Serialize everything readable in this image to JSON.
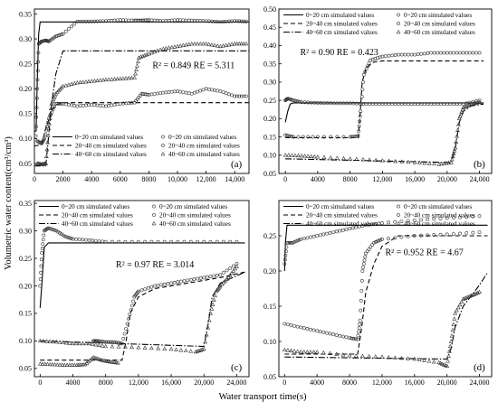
{
  "figure": {
    "ylabel": "Volumetric water content(cm³/cm³)",
    "xlabel": "Water transport time(s)"
  },
  "chart_data": [
    {
      "panel": "(a)",
      "type": "line",
      "xlim": [
        0,
        15000
      ],
      "ylim": [
        0.03,
        0.36
      ],
      "xticks": [
        0,
        2000,
        4000,
        6000,
        8000,
        10000,
        12000,
        14000
      ],
      "xtick_labels": [
        "0",
        "2000",
        "4000",
        "6000",
        "8000",
        "10,000",
        "12,000",
        "14,000"
      ],
      "yticks": [
        0.05,
        0.1,
        0.15,
        0.2,
        0.25,
        0.3,
        0.35
      ],
      "ytick_labels": [
        "0.05",
        "0.10",
        "0.15",
        "0.20",
        "0.25",
        "0.30",
        "0.35"
      ],
      "annotation": "R² = 0.849 RE = 5.311",
      "legend": [
        "0~20 cm simulated values",
        "20~40 cm simulated values",
        "40~60 cm simulated values",
        "0~20 cm simulated values",
        "20~40 cm simulated values",
        "40~60 cm simulated values"
      ],
      "legend_position": "lower-right",
      "series": [
        {
          "name": "0~20 cm simulated values",
          "kind": "sim",
          "style": "solid",
          "x": [
            0,
            120,
            200,
            300,
            400,
            500,
            15000
          ],
          "y": [
            0.115,
            0.115,
            0.22,
            0.31,
            0.334,
            0.334,
            0.334
          ]
        },
        {
          "name": "20~40 cm simulated values",
          "kind": "sim",
          "style": "dash",
          "x": [
            0,
            500,
            800,
            1200,
            1500,
            2000,
            15000
          ],
          "y": [
            0.085,
            0.088,
            0.12,
            0.155,
            0.168,
            0.172,
            0.172
          ]
        },
        {
          "name": "40~60 cm simulated values",
          "kind": "sim",
          "style": "dashdot",
          "x": [
            0,
            800,
            1200,
            1500,
            2000,
            15000
          ],
          "y": [
            0.045,
            0.045,
            0.17,
            0.23,
            0.276,
            0.276
          ]
        },
        {
          "name": "0~20 cm simulated values",
          "kind": "obs",
          "marker": "circle",
          "x": [
            100,
            200,
            300,
            500,
            800,
            1000,
            1500,
            2000,
            3000,
            4000,
            5000,
            6000,
            7000,
            7500,
            8000,
            9000,
            10000,
            11000,
            12000,
            13000,
            14000,
            14800
          ],
          "y": [
            0.105,
            0.2,
            0.29,
            0.295,
            0.297,
            0.295,
            0.305,
            0.31,
            0.335,
            0.335,
            0.336,
            0.338,
            0.337,
            0.337,
            0.338,
            0.336,
            0.338,
            0.337,
            0.336,
            0.334,
            0.336,
            0.335
          ]
        },
        {
          "name": "20~40 cm simulated values",
          "kind": "obs",
          "marker": "circle",
          "x": [
            200,
            500,
            700,
            1000,
            1500,
            2000,
            3000,
            4000,
            5000,
            6000,
            7000,
            7500,
            8000,
            9000,
            10000,
            11000,
            12000,
            13000,
            14000,
            14800
          ],
          "y": [
            0.095,
            0.09,
            0.1,
            0.14,
            0.17,
            0.17,
            0.165,
            0.168,
            0.165,
            0.17,
            0.172,
            0.19,
            0.188,
            0.192,
            0.195,
            0.19,
            0.2,
            0.195,
            0.185,
            0.185
          ]
        },
        {
          "name": "40~60 cm simulated values",
          "kind": "obs",
          "marker": "triangle",
          "x": [
            200,
            500,
            800,
            1000,
            1200,
            1500,
            2000,
            3000,
            4000,
            5000,
            6000,
            7000,
            7300,
            8000,
            9000,
            10000,
            11000,
            12000,
            13000,
            14000,
            14800
          ],
          "y": [
            0.05,
            0.048,
            0.05,
            0.12,
            0.17,
            0.19,
            0.205,
            0.212,
            0.215,
            0.218,
            0.22,
            0.222,
            0.262,
            0.27,
            0.28,
            0.285,
            0.29,
            0.29,
            0.285,
            0.29,
            0.29
          ]
        }
      ]
    },
    {
      "panel": "(b)",
      "type": "line",
      "xlim": [
        -800,
        25500
      ],
      "ylim": [
        0.05,
        0.5
      ],
      "xticks": [
        0,
        4000,
        8000,
        12000,
        16000,
        20000,
        24000
      ],
      "xtick_labels": [
        "0",
        "4000",
        "8000",
        "12,000",
        "16,000",
        "20,000",
        "24,000"
      ],
      "yticks": [
        0.05,
        0.1,
        0.15,
        0.2,
        0.25,
        0.3,
        0.35,
        0.4,
        0.45,
        0.5
      ],
      "ytick_labels": [
        "0.05",
        "0.10",
        "0.15",
        "0.20",
        "0.25",
        "0.30",
        "0.35",
        "0.40",
        "0.45",
        "0.50"
      ],
      "annotation": "R² = 0.90  RE = 0.423",
      "legend": [
        "0~20 cm simulated values",
        "20~40 cm simulated values",
        "40~60 cm simulated values",
        "0~20 cm simulated values",
        "20~40 cm simulated values",
        "40~60 cm simulated values"
      ],
      "legend_position": "top",
      "series": [
        {
          "name": "0~20 cm simulated values",
          "kind": "sim",
          "style": "solid",
          "x": [
            0,
            300,
            600,
            1000,
            24500
          ],
          "y": [
            0.19,
            0.22,
            0.24,
            0.243,
            0.243
          ]
        },
        {
          "name": "20~40 cm simulated values",
          "kind": "sim",
          "style": "dash",
          "x": [
            0,
            9000,
            9200,
            9500,
            10000,
            11000,
            12000,
            24500
          ],
          "y": [
            0.148,
            0.148,
            0.2,
            0.3,
            0.34,
            0.355,
            0.358,
            0.358
          ]
        },
        {
          "name": "40~60 cm simulated values",
          "kind": "sim",
          "style": "dashdot",
          "x": [
            0,
            20500,
            21000,
            21500,
            22000,
            23000,
            24500
          ],
          "y": [
            0.09,
            0.08,
            0.12,
            0.19,
            0.22,
            0.235,
            0.24
          ]
        },
        {
          "name": "0~20 cm simulated values",
          "kind": "obs",
          "marker": "circle",
          "x": [
            0,
            300,
            1000,
            2000,
            4000,
            6000,
            8000,
            10000,
            12000,
            14000,
            16000,
            18000,
            20000,
            22000,
            24000
          ],
          "y": [
            0.25,
            0.255,
            0.25,
            0.245,
            0.243,
            0.242,
            0.242,
            0.24,
            0.24,
            0.24,
            0.24,
            0.24,
            0.24,
            0.24,
            0.25
          ]
        },
        {
          "name": "20~40 cm simulated values",
          "kind": "obs",
          "marker": "circle",
          "x": [
            0,
            1000,
            4000,
            8000,
            9000,
            9300,
            9700,
            10500,
            12000,
            14000,
            16000,
            18000,
            20000,
            22000,
            24000
          ],
          "y": [
            0.155,
            0.15,
            0.15,
            0.15,
            0.152,
            0.22,
            0.32,
            0.36,
            0.37,
            0.375,
            0.375,
            0.38,
            0.38,
            0.38,
            0.38
          ]
        },
        {
          "name": "40~60 cm simulated values",
          "kind": "obs",
          "marker": "triangle",
          "x": [
            0,
            2000,
            4000,
            8000,
            12000,
            16000,
            19000,
            20500,
            21000,
            21500,
            22000,
            23000,
            24000
          ],
          "y": [
            0.1,
            0.098,
            0.095,
            0.09,
            0.085,
            0.08,
            0.075,
            0.08,
            0.12,
            0.2,
            0.23,
            0.24,
            0.245
          ]
        }
      ]
    },
    {
      "panel": "(c)",
      "type": "line",
      "xlim": [
        -700,
        25500
      ],
      "ylim": [
        0.035,
        0.355
      ],
      "xticks": [
        0,
        4000,
        8000,
        12000,
        16000,
        20000,
        24000
      ],
      "xtick_labels": [
        "0",
        "4000",
        "8000",
        "12,000",
        "16,000",
        "20,000",
        "24,000"
      ],
      "yticks": [
        0.05,
        0.1,
        0.15,
        0.2,
        0.25,
        0.3,
        0.35
      ],
      "ytick_labels": [
        "0.05",
        "0.10",
        "0.15",
        "0.20",
        "0.25",
        "0.30",
        "0.35"
      ],
      "annotation": "R² = 0.97  RE = 3.014",
      "legend": [
        "0~20 cm simulated values",
        "20~40 cm simulated values",
        "40~60 cm simulated values",
        "0~20 cm simulated values",
        "20~40 cm simulated values",
        "40~60 cm simulated values"
      ],
      "legend_position": "top",
      "series": [
        {
          "name": "0~20 cm simulated values",
          "kind": "sim",
          "style": "solid",
          "x": [
            0,
            200,
            500,
            1000,
            25000
          ],
          "y": [
            0.16,
            0.2,
            0.27,
            0.278,
            0.278
          ]
        },
        {
          "name": "20~40 cm simulated values",
          "kind": "sim",
          "style": "dash",
          "x": [
            0,
            10000,
            10500,
            11000,
            12000,
            14000,
            18000,
            22000,
            25000
          ],
          "y": [
            0.065,
            0.065,
            0.1,
            0.15,
            0.18,
            0.195,
            0.205,
            0.215,
            0.225
          ]
        },
        {
          "name": "40~60 cm simulated values",
          "kind": "sim",
          "style": "dashdot",
          "x": [
            0,
            20000,
            20500,
            21000,
            22000,
            25000
          ],
          "y": [
            0.1,
            0.09,
            0.13,
            0.18,
            0.205,
            0.225
          ]
        },
        {
          "name": "0~20 cm simulated values",
          "kind": "obs",
          "marker": "circle",
          "x": [
            0,
            200,
            500,
            1000,
            2000,
            3000,
            4000,
            6000,
            8000,
            12000,
            16000,
            20000,
            24000
          ],
          "y": [
            0.2,
            0.26,
            0.3,
            0.305,
            0.3,
            0.29,
            0.285,
            0.283,
            0.28,
            0.28,
            0.28,
            0.28,
            0.28
          ]
        },
        {
          "name": "20~40 cm simulated values",
          "kind": "obs",
          "marker": "circle",
          "x": [
            6500,
            7000,
            8000,
            9000,
            10000,
            10800,
            11500,
            12000,
            14000,
            16000,
            18000,
            20000,
            22000,
            24000
          ],
          "y": [
            0.1,
            0.1,
            0.098,
            0.098,
            0.095,
            0.14,
            0.18,
            0.19,
            0.2,
            0.205,
            0.21,
            0.215,
            0.22,
            0.24
          ]
        },
        {
          "name": "40~60 cm simulated values",
          "kind": "obs",
          "marker": "triangle",
          "x": [
            0,
            2000,
            4000,
            6000,
            8000,
            12000,
            16000,
            19000,
            20000,
            20800,
            21500,
            22000,
            23000,
            24000
          ],
          "y": [
            0.1,
            0.098,
            0.095,
            0.095,
            0.09,
            0.088,
            0.085,
            0.08,
            0.085,
            0.15,
            0.19,
            0.2,
            0.215,
            0.235
          ]
        },
        {
          "name": "40~60 cm simulated values",
          "kind": "obs",
          "marker": "triangle",
          "x": [
            0,
            1500,
            3000,
            4500,
            5500,
            6500,
            7500,
            8500,
            9500
          ],
          "y": [
            0.058,
            0.057,
            0.056,
            0.056,
            0.057,
            0.07,
            0.065,
            0.062,
            0.06
          ]
        }
      ]
    },
    {
      "panel": "(d)",
      "type": "line",
      "xlim": [
        -700,
        25500
      ],
      "ylim": [
        0.05,
        0.3
      ],
      "xticks": [
        0,
        4000,
        8000,
        12000,
        16000,
        20000,
        24000
      ],
      "xtick_labels": [
        "0",
        "4000",
        "8000",
        "12,000",
        "16,000",
        "20,000",
        "24,000"
      ],
      "yticks": [
        0.05,
        0.1,
        0.15,
        0.2,
        0.25
      ],
      "ytick_labels": [
        "0.05",
        "0.10",
        "0.15",
        "0.20",
        "0.25"
      ],
      "annotation": "R² = 0.952  RE = 4.67",
      "legend": [
        "0~20 cm simulated values",
        "20~40 cm simulated values",
        "40~60 cm simulated values",
        "0~20 cm simulated values",
        "20~40 cm simulated values",
        "40~60 cm simulated values"
      ],
      "legend_position": "top",
      "series": [
        {
          "name": "0~20 cm simulated values",
          "kind": "sim",
          "style": "solid",
          "x": [
            0,
            100,
            300,
            25000
          ],
          "y": [
            0.2,
            0.24,
            0.265,
            0.265
          ]
        },
        {
          "name": "20~40 cm simulated values",
          "kind": "sim",
          "style": "dash",
          "x": [
            0,
            9000,
            9500,
            10000,
            11000,
            12000,
            14000,
            25000
          ],
          "y": [
            0.082,
            0.082,
            0.12,
            0.17,
            0.21,
            0.235,
            0.25,
            0.25
          ]
        },
        {
          "name": "40~60 cm simulated values",
          "kind": "sim",
          "style": "dashdot",
          "x": [
            0,
            20000,
            20500,
            21000,
            22000,
            23000,
            24000,
            25000
          ],
          "y": [
            0.078,
            0.075,
            0.09,
            0.12,
            0.15,
            0.165,
            0.18,
            0.198
          ]
        },
        {
          "name": "0~20 cm simulated values",
          "kind": "obs",
          "marker": "circle",
          "x": [
            0,
            300,
            1000,
            2000,
            4000,
            6000,
            8000,
            10000,
            12000,
            16000,
            20000,
            24000
          ],
          "y": [
            0.21,
            0.24,
            0.24,
            0.245,
            0.25,
            0.255,
            0.26,
            0.265,
            0.268,
            0.272,
            0.275,
            0.278
          ]
        },
        {
          "name": "20~40 cm simulated values",
          "kind": "obs",
          "marker": "circle",
          "x": [
            0,
            2000,
            4000,
            6000,
            8000,
            9000,
            9300,
            9600,
            10000,
            11000,
            12000,
            16000,
            20000,
            24000
          ],
          "y": [
            0.125,
            0.12,
            0.115,
            0.11,
            0.105,
            0.103,
            0.13,
            0.2,
            0.225,
            0.24,
            0.245,
            0.25,
            0.252,
            0.255
          ]
        },
        {
          "name": "40~60 cm simulated values",
          "kind": "obs",
          "marker": "triangle",
          "x": [
            0,
            2000,
            4000,
            8000,
            12000,
            16000,
            19000,
            20000,
            20500,
            21000,
            22000,
            23000,
            24000
          ],
          "y": [
            0.088,
            0.085,
            0.085,
            0.08,
            0.078,
            0.075,
            0.07,
            0.065,
            0.1,
            0.14,
            0.16,
            0.165,
            0.17
          ]
        }
      ]
    }
  ]
}
